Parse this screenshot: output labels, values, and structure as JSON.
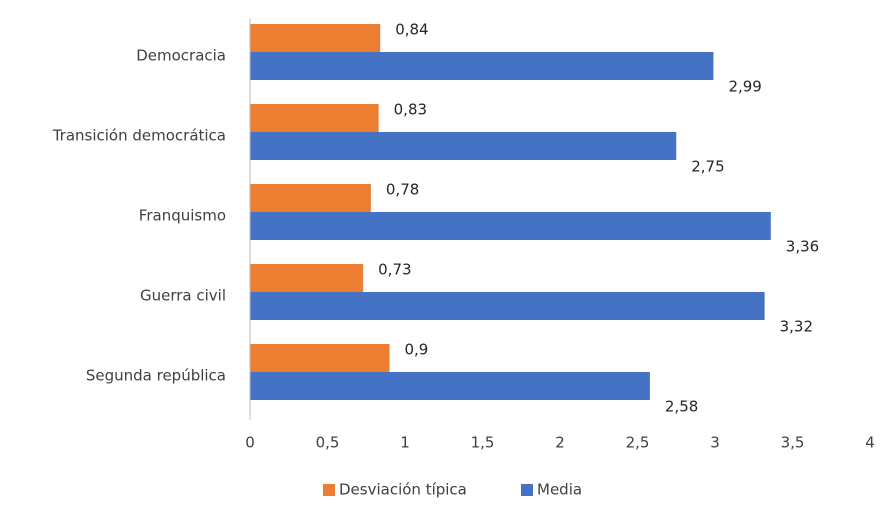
{
  "chart_data": {
    "type": "bar",
    "orientation": "horizontal",
    "categories": [
      "Democracia",
      "Transición democrática",
      "Franquismo",
      "Guerra civil",
      "Segunda república"
    ],
    "series": [
      {
        "name": "Desviación típica",
        "color": "#ED7D31",
        "values": [
          0.84,
          0.83,
          0.78,
          0.73,
          0.9
        ],
        "labels": [
          "0,84",
          "0,83",
          "0,78",
          "0,73",
          "0,9"
        ]
      },
      {
        "name": "Media",
        "color": "#4472C4",
        "values": [
          2.99,
          2.75,
          3.36,
          3.32,
          2.58
        ],
        "labels": [
          "2,99",
          "2,75",
          "3,36",
          "3,32",
          "2,58"
        ]
      }
    ],
    "xlim": [
      0,
      4
    ],
    "xticks": [
      0,
      0.5,
      1,
      1.5,
      2,
      2.5,
      3,
      3.5,
      4
    ],
    "xtick_labels": [
      "0",
      "0,5",
      "1",
      "1,5",
      "2",
      "2,5",
      "3",
      "3,5",
      "4"
    ],
    "grid": false,
    "legend": "bottom"
  }
}
